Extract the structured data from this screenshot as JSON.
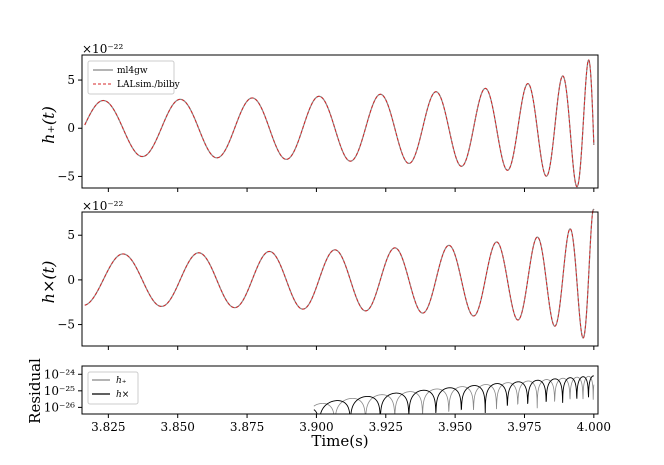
{
  "chart_data": [
    {
      "type": "line",
      "id": "hplus",
      "ylabel": "h₊(t)",
      "scale_factor": "×10⁻²²",
      "xlim": [
        3.8155,
        4.0015
      ],
      "ylim": [
        -6.2,
        7.6
      ],
      "yticks": [
        -5,
        0,
        5
      ],
      "yticklabels": [
        "−5",
        "0",
        "5"
      ],
      "legend": {
        "position": "top-left",
        "entries": [
          {
            "label": "ml4gw",
            "color": "#888888",
            "style": "solid"
          },
          {
            "label": "LALsim./bilby",
            "color": "#d62728",
            "style": "dashed"
          }
        ]
      },
      "series": [
        {
          "name": "ml4gw",
          "color": "#888888",
          "style": "solid"
        },
        {
          "name": "LALsim./bilby",
          "color": "#d62728",
          "style": "dashed"
        }
      ]
    },
    {
      "type": "line",
      "id": "hcross",
      "ylabel": "h×(t)",
      "scale_factor": "×10⁻²²",
      "xlim": [
        3.8155,
        4.0015
      ],
      "ylim": [
        -7.4,
        7.6
      ],
      "yticks": [
        -5,
        0,
        5
      ],
      "yticklabels": [
        "−5",
        "0",
        "5"
      ],
      "series": [
        {
          "name": "ml4gw",
          "color": "#888888",
          "style": "solid"
        },
        {
          "name": "LALsim./bilby",
          "color": "#d62728",
          "style": "dashed"
        }
      ]
    },
    {
      "type": "line",
      "id": "residual",
      "ylabel": "Residual",
      "xlabel": "Time(s)",
      "yscale": "log",
      "xlim": [
        3.8155,
        4.0015
      ],
      "ylim": [
        -26.4,
        -23.5
      ],
      "xticks": [
        3.825,
        3.85,
        3.875,
        3.9,
        3.925,
        3.95,
        3.975,
        4.0
      ],
      "xticklabels": [
        "3.825",
        "3.850",
        "3.875",
        "3.900",
        "3.925",
        "3.950",
        "3.975",
        "4.000"
      ],
      "yticks": [
        -24,
        -25,
        -26
      ],
      "yticklabels": [
        "10⁻²⁴",
        "10⁻²⁵",
        "10⁻²⁶"
      ],
      "legend": {
        "position": "top-left",
        "entries": [
          {
            "label": "h₊",
            "color": "#888888",
            "style": "solid"
          },
          {
            "label": "h×",
            "color": "#000000",
            "style": "solid"
          }
        ]
      },
      "series": [
        {
          "name": "h₊",
          "color": "#888888",
          "style": "solid"
        },
        {
          "name": "h×",
          "color": "#000000",
          "style": "solid"
        }
      ]
    }
  ],
  "signal": {
    "t_start": 3.8165,
    "t_end": 4.0,
    "t_merge": 4.003,
    "residual_start": 3.899,
    "residual_floor_exp": -26.4,
    "residual_peak_exp": -24.1
  }
}
